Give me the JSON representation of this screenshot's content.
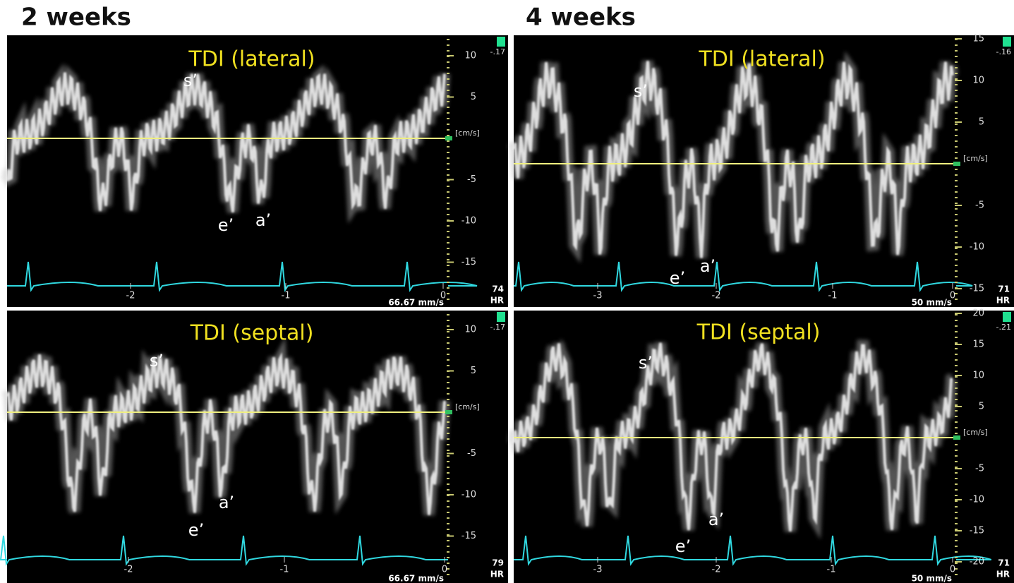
{
  "figure": {
    "columns": [
      {
        "title": "2 weeks",
        "panels": [
          {
            "label": "TDI (lateral)",
            "scale_corner": "-.17",
            "unit": "[cm/s]",
            "ticks": [
              10,
              5,
              -5,
              -10,
              -15
            ],
            "annotations": [
              "s’",
              "e’",
              "a’"
            ],
            "time_labels": [
              -2,
              -1,
              0
            ],
            "hr": 74,
            "hr_label": "HR",
            "sweep": "66.67 mm/s"
          },
          {
            "label": "TDI (septal)",
            "scale_corner": "-.17",
            "unit": "[cm/s]",
            "ticks": [
              10,
              5,
              -5,
              -10,
              -15
            ],
            "annotations": [
              "s’",
              "e’",
              "a’"
            ],
            "time_labels": [
              -2,
              -1,
              0
            ],
            "hr": 79,
            "hr_label": "HR",
            "sweep": "66.67 mm/s"
          }
        ]
      },
      {
        "title": "4 weeks",
        "panels": [
          {
            "label": "TDI (lateral)",
            "scale_corner": "-.16",
            "unit": "[cm/s]",
            "ticks": [
              15,
              10,
              5,
              -5,
              -10,
              -15
            ],
            "annotations": [
              "s’",
              "e’",
              "a’"
            ],
            "time_labels": [
              -3,
              -2,
              -1,
              0
            ],
            "hr": 71,
            "hr_label": "HR",
            "sweep": "50 mm/s"
          },
          {
            "label": "TDI (septal)",
            "scale_corner": "-.21",
            "unit": "[cm/s]",
            "ticks": [
              20,
              15,
              10,
              5,
              -5,
              -10,
              -15,
              -20
            ],
            "annotations": [
              "s’",
              "e’",
              "a’"
            ],
            "time_labels": [
              -3,
              -2,
              -1,
              0
            ],
            "hr": 71,
            "hr_label": "HR",
            "sweep": "50 mm/s"
          }
        ]
      }
    ]
  }
}
